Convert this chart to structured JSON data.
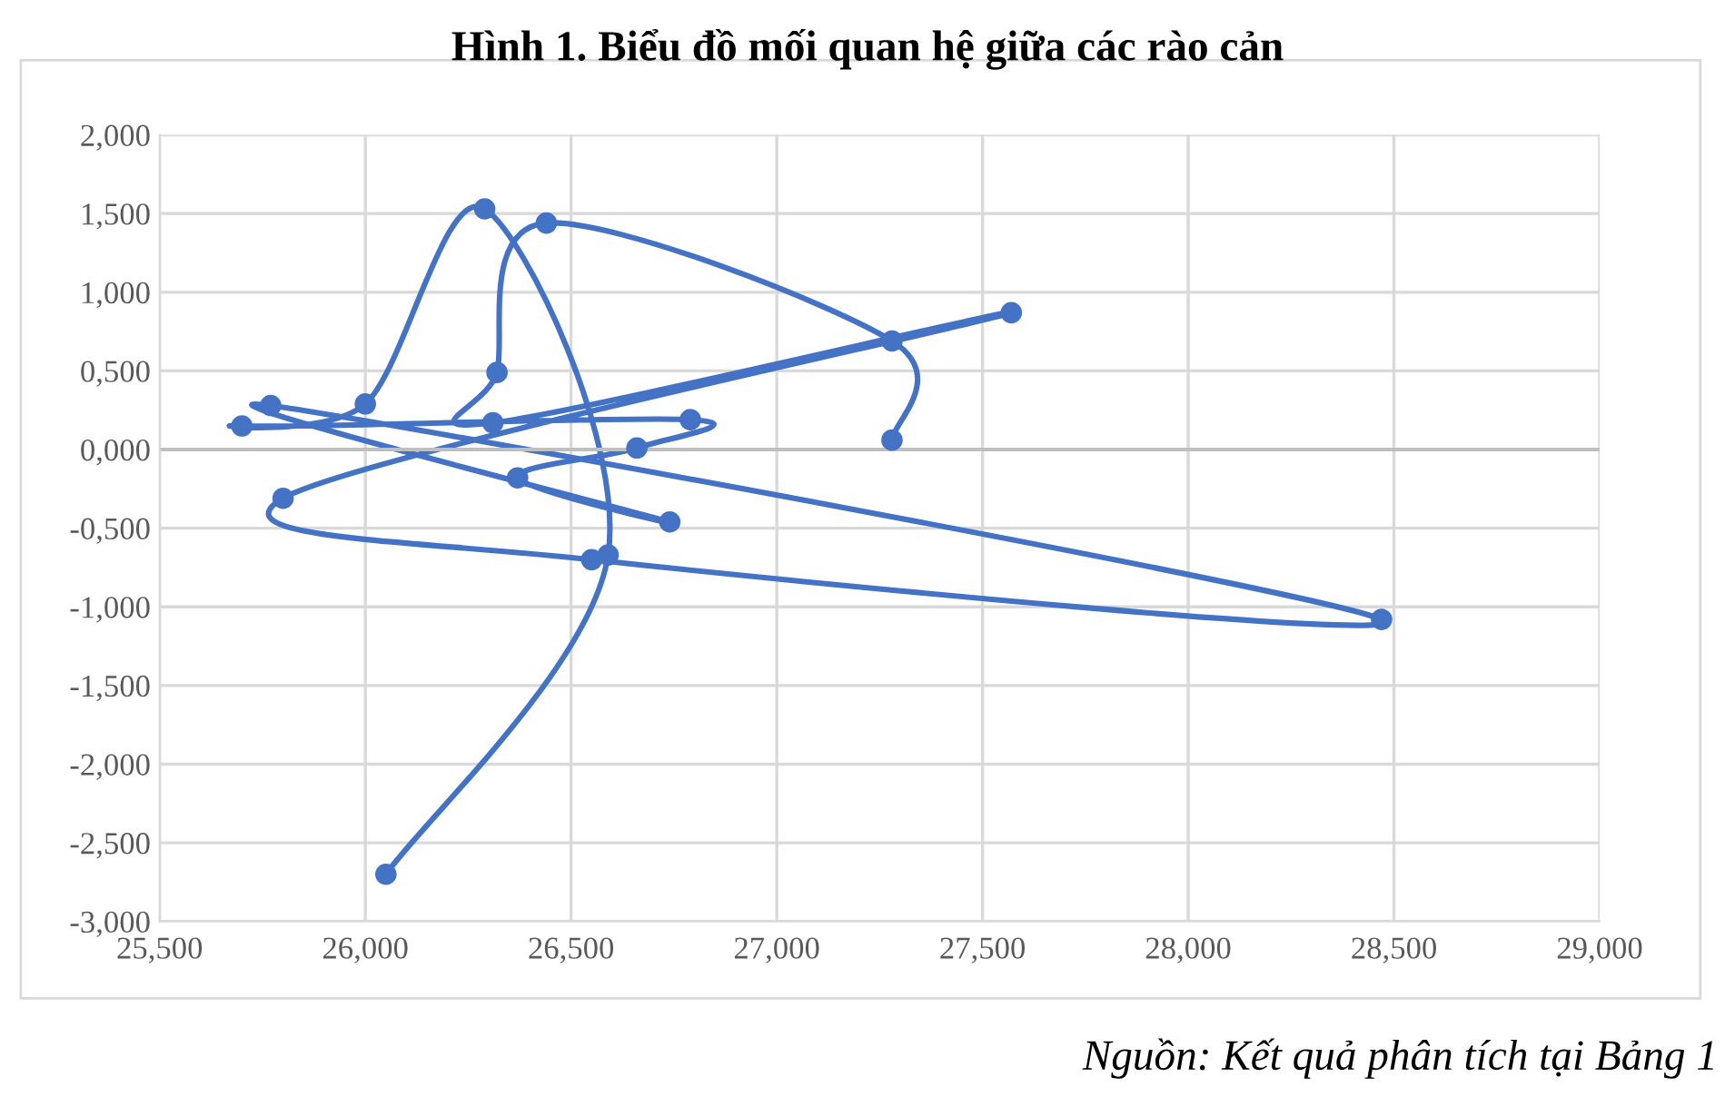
{
  "chart_data": {
    "type": "line",
    "title": "Hình 1. Biểu đồ mối quan hệ giữa các rào cản",
    "annotations": [
      "Nguồn: Kết quả phân tích tại Bảng 1"
    ],
    "series": [
      {
        "color": "#4472c4",
        "x": [
          27.28,
          27.28,
          26.44,
          26.32,
          26.31,
          27.57,
          25.8,
          26.55,
          28.47,
          25.77,
          26.74,
          26.37,
          26.66,
          26.79,
          25.7,
          26.0,
          26.29,
          26.59,
          26.05
        ],
        "values": [
          0.06,
          0.69,
          1.44,
          0.49,
          0.17,
          0.87,
          -0.31,
          -0.7,
          -1.08,
          0.28,
          -0.46,
          -0.18,
          0.01,
          0.19,
          0.15,
          0.29,
          1.53,
          -0.67,
          -2.7
        ]
      }
    ],
    "marker": "circle",
    "line_style": "solid",
    "grid": true,
    "xlim": [
      25.5,
      29.0
    ],
    "xticks": [
      {
        "value": 25.5,
        "label": "25,500"
      },
      {
        "value": 26.0,
        "label": "26,000"
      },
      {
        "value": 26.5,
        "label": "26,500"
      },
      {
        "value": 27.0,
        "label": "27,000"
      },
      {
        "value": 27.5,
        "label": "27,500"
      },
      {
        "value": 28.0,
        "label": "28,000"
      },
      {
        "value": 28.5,
        "label": "28,500"
      },
      {
        "value": 29.0,
        "label": "29,000"
      }
    ],
    "ylim": [
      -3.0,
      2.0
    ],
    "yticks": [
      {
        "value": -3.0,
        "label": "-3,000"
      },
      {
        "value": -2.5,
        "label": "-2,500"
      },
      {
        "value": -2.0,
        "label": "-2,000"
      },
      {
        "value": -1.5,
        "label": "-1,500"
      },
      {
        "value": -1.0,
        "label": "-1,000"
      },
      {
        "value": -0.5,
        "label": "-0,500"
      },
      {
        "value": 0.0,
        "label": "0,000"
      },
      {
        "value": 0.5,
        "label": "0,500"
      },
      {
        "value": 1.0,
        "label": "1,000"
      },
      {
        "value": 1.5,
        "label": "1,500"
      },
      {
        "value": 2.0,
        "label": "2,000"
      }
    ]
  }
}
